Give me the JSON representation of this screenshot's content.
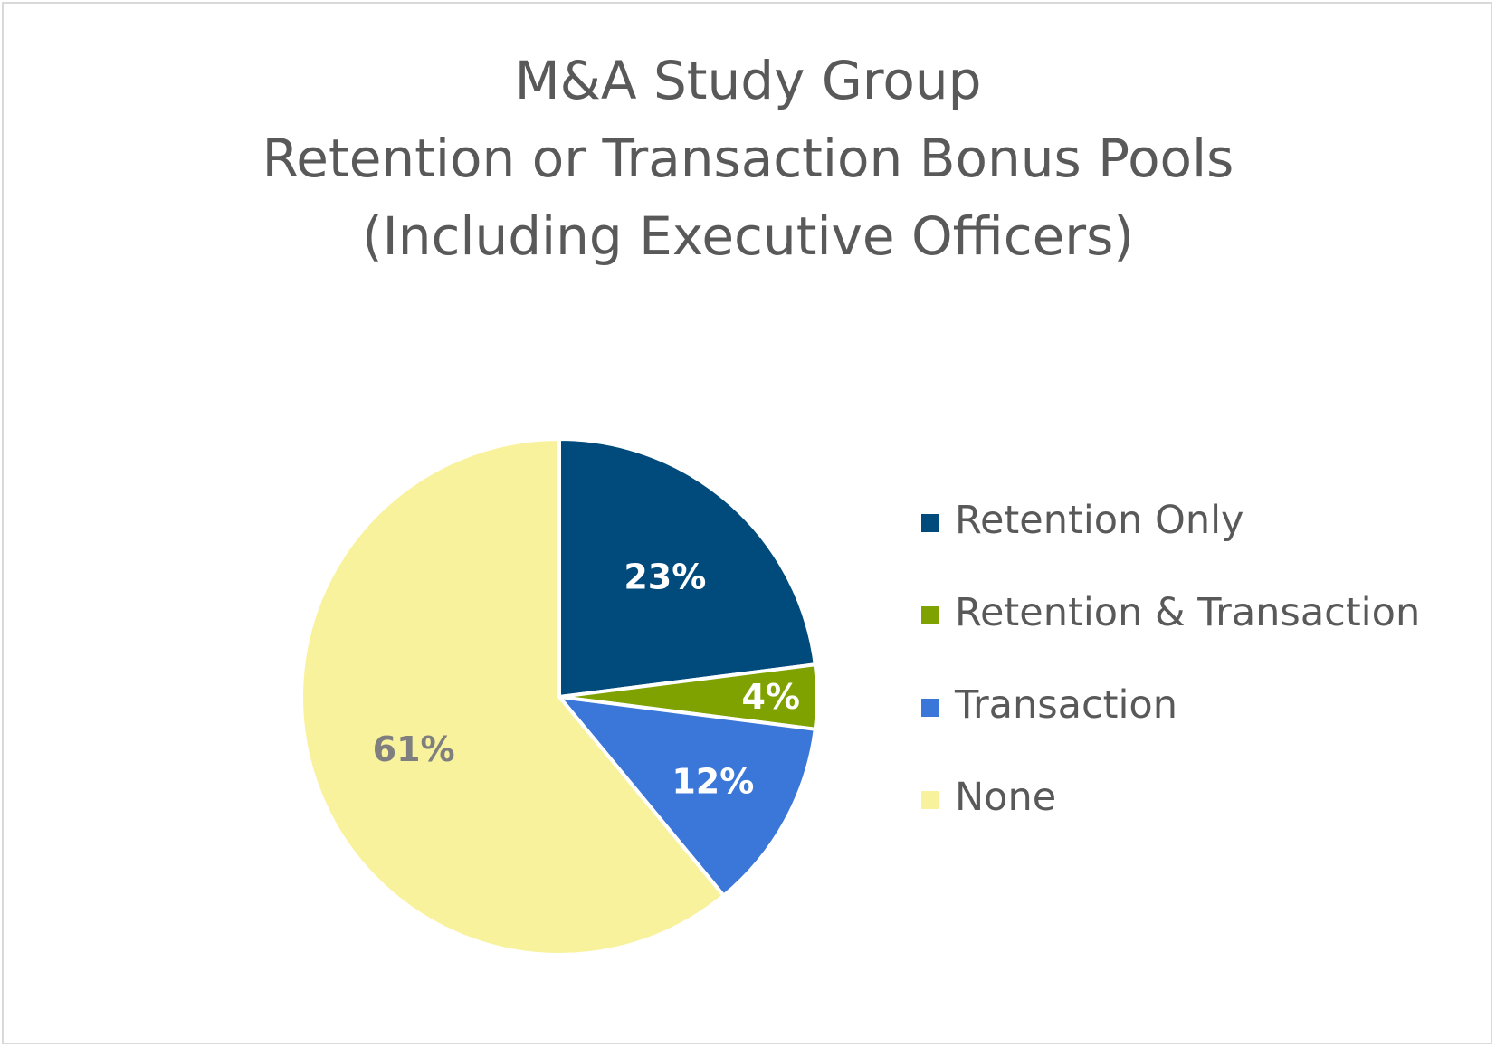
{
  "chart_data": {
    "type": "pie",
    "title": [
      "M&A Study Group",
      "Retention or Transaction Bonus Pools",
      "(Including Executive Officers)"
    ],
    "slices": [
      {
        "name": "Retention Only",
        "value": 23,
        "label": "23%",
        "color": "#004a7c",
        "label_color": "#ffffff"
      },
      {
        "name": "Retention & Transaction",
        "value": 4,
        "label": "4%",
        "color": "#7fa200",
        "label_color": "#ffffff"
      },
      {
        "name": "Transaction",
        "value": 12,
        "label": "12%",
        "color": "#3b76d9",
        "label_color": "#ffffff"
      },
      {
        "name": "None",
        "value": 61,
        "label": "61%",
        "color": "#f9f29d",
        "label_color": "#7f7f7f"
      }
    ],
    "legend_position": "right"
  }
}
